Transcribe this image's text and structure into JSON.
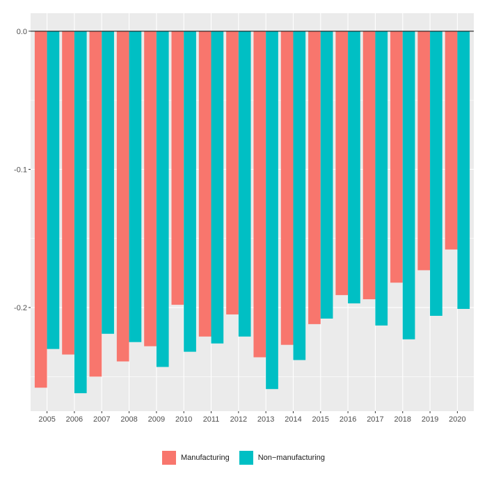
{
  "chart_data": {
    "type": "bar",
    "categories": [
      "2005",
      "2006",
      "2007",
      "2008",
      "2009",
      "2010",
      "2011",
      "2012",
      "2013",
      "2014",
      "2015",
      "2016",
      "2017",
      "2018",
      "2019",
      "2020"
    ],
    "series": [
      {
        "name": "Manufacturing",
        "color": "#F8766D",
        "values": [
          -0.258,
          -0.234,
          -0.25,
          -0.239,
          -0.228,
          -0.198,
          -0.221,
          -0.205,
          -0.236,
          -0.227,
          -0.212,
          -0.191,
          -0.194,
          -0.182,
          -0.173,
          -0.158
        ]
      },
      {
        "name": "Non−manufacturing",
        "color": "#00BFC4",
        "values": [
          -0.23,
          -0.262,
          -0.219,
          -0.225,
          -0.243,
          -0.232,
          -0.226,
          -0.221,
          -0.259,
          -0.238,
          -0.208,
          -0.197,
          -0.213,
          -0.223,
          -0.206,
          -0.201
        ]
      }
    ],
    "yticks": [
      0.0,
      -0.1,
      -0.2
    ],
    "ytick_labels": [
      "0.0",
      "-0.1",
      "-0.2"
    ],
    "ylim": [
      -0.275,
      0.013
    ],
    "reference_line": 0.0,
    "xlabel": "",
    "ylabel": "",
    "title": "",
    "grid": true,
    "panel_background": "#EBEBEB",
    "legend_position": "bottom"
  }
}
